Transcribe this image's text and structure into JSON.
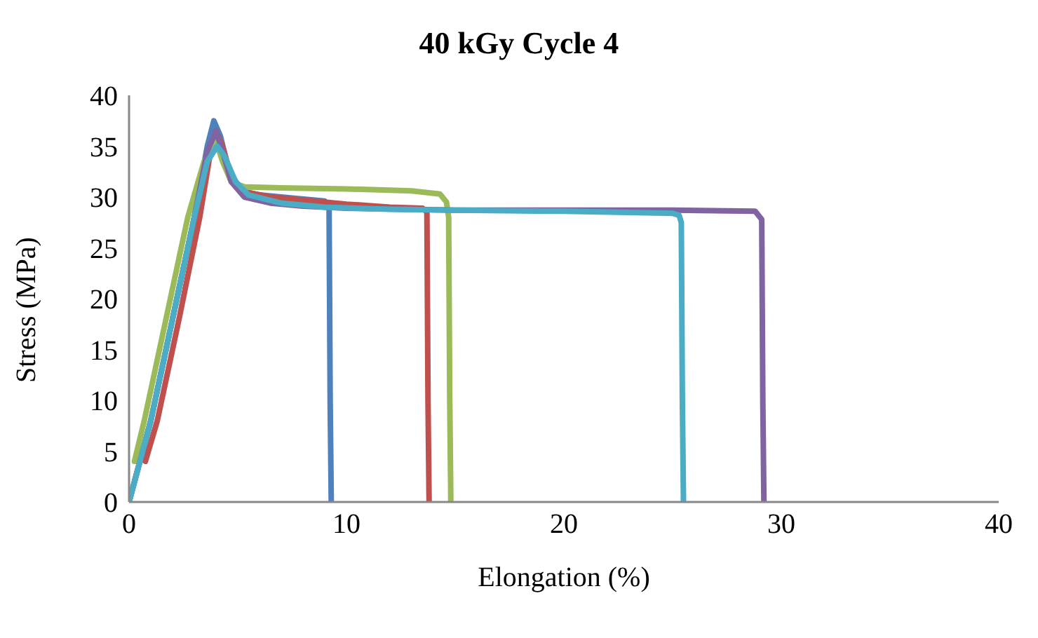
{
  "chart_data": {
    "type": "line",
    "title": "40 kGy Cycle 4",
    "xlabel": "Elongation (%)",
    "ylabel": "Stress (MPa)",
    "xlim": [
      0,
      40
    ],
    "xticks": [
      0,
      10,
      20,
      30,
      40
    ],
    "ylim": [
      0,
      40
    ],
    "yticks": [
      0,
      5,
      10,
      15,
      20,
      25,
      30,
      35,
      40
    ],
    "grid": false,
    "legend": false,
    "marker": "none",
    "line_style": "solid",
    "series": [
      {
        "color": "#4f81bd",
        "x": [
          0,
          0.5,
          1,
          2,
          3,
          3.6,
          3.9,
          4.2,
          4.6,
          5.2,
          6,
          7.5,
          9,
          9.2,
          9.25,
          9.3
        ],
        "values": [
          0,
          4,
          8,
          18,
          28,
          35,
          37.5,
          36,
          32.5,
          30.6,
          30.2,
          29.9,
          29.6,
          29,
          10,
          0
        ]
      },
      {
        "color": "#c0504d",
        "x": [
          0.75,
          1.3,
          2.3,
          3.25,
          3.75,
          4,
          4.3,
          4.7,
          5.3,
          6.5,
          8,
          10,
          12,
          13.5,
          13.7,
          13.75,
          13.8
        ],
        "values": [
          4,
          8,
          18,
          28,
          34.5,
          36.5,
          35,
          32,
          30.5,
          30,
          29.7,
          29.3,
          29,
          28.9,
          28.5,
          10,
          0
        ]
      },
      {
        "color": "#9bbb59",
        "x": [
          0.25,
          0.7,
          1.7,
          2.7,
          3.45,
          4,
          4.3,
          4.7,
          5.3,
          7,
          10,
          13,
          14.3,
          14.6,
          14.7,
          14.75,
          14.8
        ],
        "values": [
          4,
          8,
          18,
          28,
          33.5,
          35.5,
          33.5,
          31.5,
          31,
          30.9,
          30.8,
          30.6,
          30.3,
          29.5,
          28,
          10,
          0
        ]
      },
      {
        "color": "#8064a2",
        "x": [
          0,
          0.5,
          1,
          2,
          3,
          3.6,
          4,
          4.3,
          4.7,
          5.3,
          6.5,
          8,
          10,
          15,
          20,
          25,
          28.8,
          29.1,
          29.15,
          29.2
        ],
        "values": [
          0,
          4,
          8,
          18,
          28,
          34.5,
          36.5,
          34.5,
          31.5,
          30,
          29.4,
          29.1,
          28.9,
          28.7,
          28.7,
          28.7,
          28.6,
          27.8,
          10,
          0
        ]
      },
      {
        "color": "#4bacc6",
        "x": [
          0,
          0.5,
          1,
          2,
          3,
          3.6,
          4.05,
          4.4,
          4.9,
          5.5,
          7,
          9,
          12,
          15,
          20,
          25,
          25.3,
          25.4,
          25.45,
          25.5
        ],
        "values": [
          0,
          4,
          8,
          18,
          28,
          33.5,
          35,
          34,
          31.5,
          30.2,
          29.4,
          29,
          28.8,
          28.7,
          28.6,
          28.4,
          28.2,
          27.5,
          10,
          0
        ]
      }
    ]
  }
}
